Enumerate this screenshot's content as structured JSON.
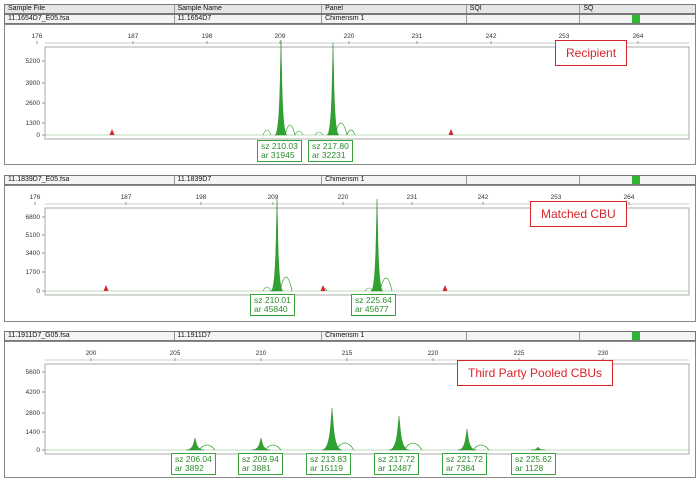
{
  "header": {
    "sample_file": "Sample File",
    "sample_name": "Sample Name",
    "panel": "Panel",
    "sqi": "SQI",
    "sq": "SQ"
  },
  "colors": {
    "peak": "#2fa32f",
    "size_standard": "#d9232a",
    "label_box": "#3aa23a",
    "callout": "#d9232a"
  },
  "panels": [
    {
      "file": "11.1654D7_E05.fsa",
      "name": "11.1654D7",
      "panel": "Chimerism 1",
      "callout": "Recipient",
      "x_ticks": [
        "176",
        "187",
        "198",
        "209",
        "220",
        "231",
        "242",
        "253",
        "264"
      ],
      "y_ticks": [
        "5200",
        "3900",
        "2600",
        "1300",
        "0"
      ],
      "peaks": [
        {
          "sz": "sz 210.03",
          "ar": "ar 31945"
        },
        {
          "sz": "sz 217.80",
          "ar": "ar 32231"
        }
      ]
    },
    {
      "file": "11.1839D7_E05.fsa",
      "name": "11.1839D7",
      "panel": "Chimerism 1",
      "callout": "Matched CBU",
      "x_ticks": [
        "176",
        "187",
        "198",
        "209",
        "220",
        "231",
        "242",
        "253",
        "264"
      ],
      "y_ticks": [
        "6800",
        "5100",
        "3400",
        "1700",
        "0"
      ],
      "peaks": [
        {
          "sz": "sz 210.01",
          "ar": "ar 45840"
        },
        {
          "sz": "sz 225.64",
          "ar": "ar 45677"
        }
      ]
    },
    {
      "file": "11.1911D7_G05.fsa",
      "name": "11.1911D7",
      "panel": "Chimerism 1",
      "callout": "Third Party Pooled CBUs",
      "x_ticks": [
        "200",
        "205",
        "210",
        "215",
        "220",
        "225",
        "230"
      ],
      "y_ticks": [
        "5600",
        "4200",
        "2800",
        "1400",
        "0"
      ],
      "peaks": [
        {
          "sz": "sz 206.04",
          "ar": "ar 3892"
        },
        {
          "sz": "sz 209.94",
          "ar": "ar 3881"
        },
        {
          "sz": "sz 213.83",
          "ar": "ar 15119"
        },
        {
          "sz": "sz 217.72",
          "ar": "ar 12487"
        },
        {
          "sz": "sz 221.72",
          "ar": "ar 7384"
        },
        {
          "sz": "sz 225.62",
          "ar": "ar 1128"
        }
      ]
    }
  ]
}
